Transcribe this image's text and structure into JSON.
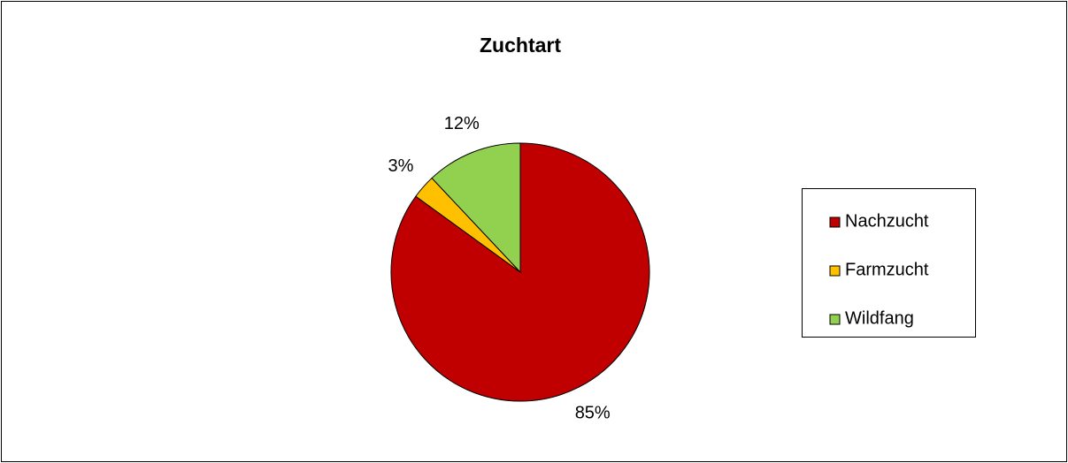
{
  "chart_data": {
    "type": "pie",
    "title": "Zuchtart",
    "categories": [
      "Nachzucht",
      "Farmzucht",
      "Wildfang"
    ],
    "values": [
      85,
      3,
      12
    ],
    "value_labels": [
      "85%",
      "3%",
      "12%"
    ],
    "colors": [
      "#c00000",
      "#ffc000",
      "#92d050"
    ],
    "legend": "right"
  }
}
